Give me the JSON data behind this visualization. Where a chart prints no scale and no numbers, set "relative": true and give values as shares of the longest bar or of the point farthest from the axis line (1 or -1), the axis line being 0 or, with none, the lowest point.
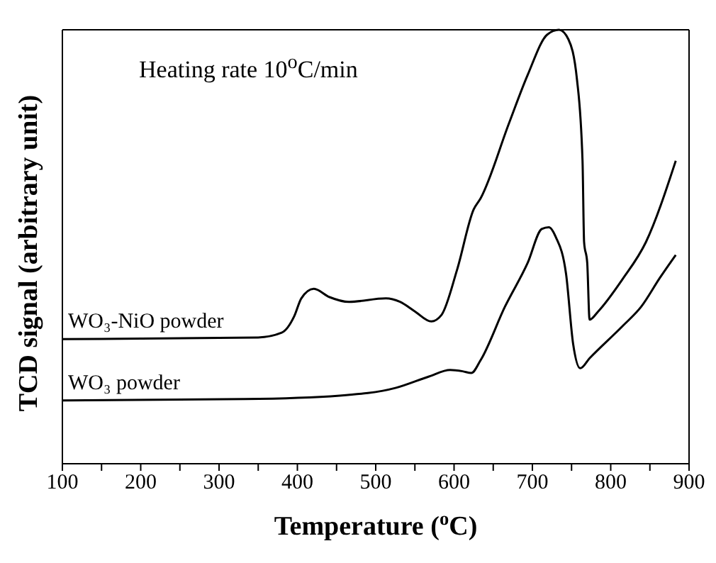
{
  "chart_data": {
    "type": "line",
    "relative": true,
    "xlabel": "Temperature ($^{o}$C)",
    "ylabel": "TCD signal (arbitrary unit)",
    "annotations": [
      "Heating rate 10$^{o}$C/min"
    ],
    "marker": "none",
    "line_style": "solid",
    "xlim": [
      100,
      900
    ],
    "xticks": [
      100,
      {
        "value": 150,
        "label": null
      },
      200,
      {
        "value": 250,
        "label": null
      },
      300,
      {
        "value": 350,
        "label": null
      },
      400,
      {
        "value": 450,
        "label": null
      },
      500,
      {
        "value": 550,
        "label": null
      },
      600,
      {
        "value": 650,
        "label": null
      },
      700,
      {
        "value": 750,
        "label": null
      },
      800,
      {
        "value": 850,
        "label": null
      },
      900
    ],
    "series": [
      {
        "name": "WO₃-NiO powder",
        "color": "#000000",
        "x": [
          100,
          350,
          380,
          396,
          405,
          421,
          441,
          466,
          513,
          531,
          550,
          571,
          584,
          604,
          625,
          634,
          670,
          694,
          719,
          734,
          746,
          757,
          764,
          766,
          770,
          773,
          784,
          815,
          845,
          883
        ],
        "values": [
          0.287,
          0.291,
          0.302,
          0.34,
          0.381,
          0.403,
          0.384,
          0.373,
          0.381,
          0.373,
          0.351,
          0.328,
          0.343,
          0.448,
          0.586,
          0.612,
          0.784,
          0.896,
          0.989,
          1.0,
          0.978,
          0.884,
          0.698,
          0.511,
          0.463,
          0.332,
          0.351,
          0.425,
          0.511,
          0.698
        ]
      },
      {
        "name": "WO₃ powder",
        "color": "#000000",
        "x": [
          100,
          333,
          454,
          526,
          568,
          595,
          611,
          622,
          634,
          665,
          694,
          712,
          721,
          730,
          743,
          752,
          761,
          773,
          815,
          839,
          863,
          883
        ],
        "values": [
          0.146,
          0.149,
          0.157,
          0.175,
          0.201,
          0.216,
          0.213,
          0.209,
          0.239,
          0.362,
          0.463,
          0.541,
          0.545,
          0.522,
          0.437,
          0.276,
          0.22,
          0.243,
          0.317,
          0.362,
          0.429,
          0.481
        ]
      }
    ]
  }
}
